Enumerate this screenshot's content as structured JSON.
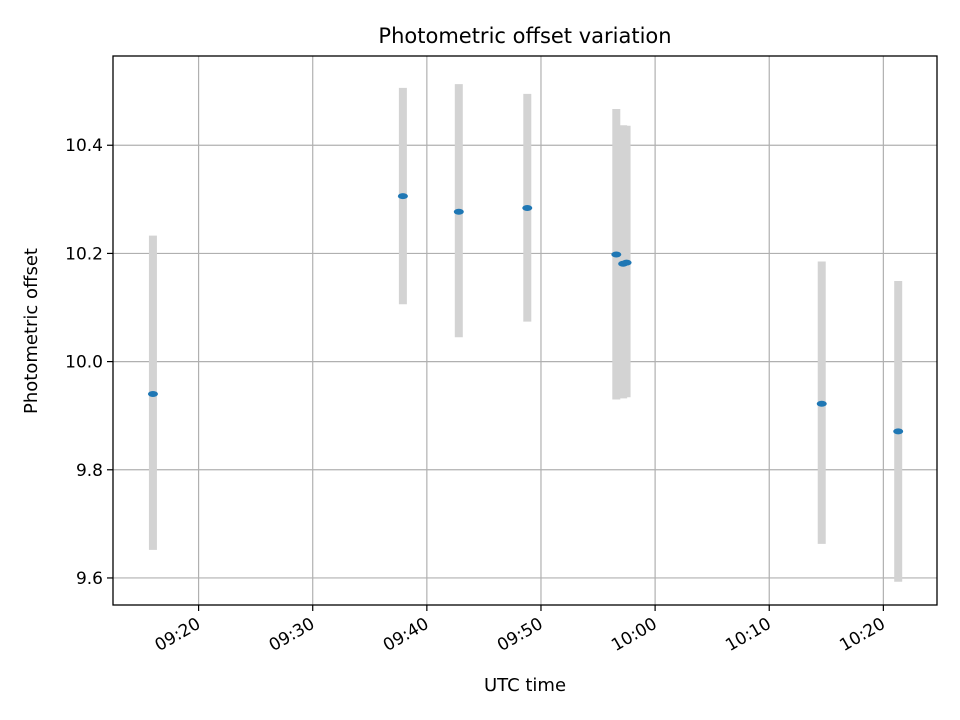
{
  "chart_data": {
    "type": "scatter",
    "title": "Photometric offset variation",
    "xlabel": "UTC time",
    "ylabel": "Photometric offset",
    "x_unit": "minutes after 09:00 UTC",
    "xlim": [
      12.5,
      84.7
    ],
    "ylim": [
      9.55,
      10.565
    ],
    "grid": true,
    "x_ticks": [
      {
        "value": 20,
        "label": "09:20"
      },
      {
        "value": 30,
        "label": "09:30"
      },
      {
        "value": 40,
        "label": "09:40"
      },
      {
        "value": 50,
        "label": "09:50"
      },
      {
        "value": 60,
        "label": "10:00"
      },
      {
        "value": 70,
        "label": "10:10"
      },
      {
        "value": 80,
        "label": "10:20"
      }
    ],
    "y_ticks": [
      {
        "value": 9.6,
        "label": "9.6"
      },
      {
        "value": 9.8,
        "label": "9.8"
      },
      {
        "value": 10.0,
        "label": "10.0"
      },
      {
        "value": 10.2,
        "label": "10.2"
      },
      {
        "value": 10.4,
        "label": "10.4"
      }
    ],
    "series": [
      {
        "name": "Photometric offset",
        "color": "#1f77b4",
        "errorbar_color": "#d3d3d3",
        "points": [
          {
            "x": 16.0,
            "y": 9.94,
            "ylow": 9.652,
            "yhigh": 10.233
          },
          {
            "x": 37.9,
            "y": 10.306,
            "ylow": 10.106,
            "yhigh": 10.506
          },
          {
            "x": 42.8,
            "y": 10.277,
            "ylow": 10.045,
            "yhigh": 10.513
          },
          {
            "x": 48.8,
            "y": 10.284,
            "ylow": 10.074,
            "yhigh": 10.495
          },
          {
            "x": 56.6,
            "y": 10.198,
            "ylow": 9.93,
            "yhigh": 10.467
          },
          {
            "x": 57.2,
            "y": 10.181,
            "ylow": 9.932,
            "yhigh": 10.437
          },
          {
            "x": 57.5,
            "y": 10.183,
            "ylow": 9.934,
            "yhigh": 10.436
          },
          {
            "x": 74.6,
            "y": 9.922,
            "ylow": 9.663,
            "yhigh": 10.185
          },
          {
            "x": 81.3,
            "y": 9.871,
            "ylow": 9.593,
            "yhigh": 10.149
          }
        ]
      }
    ]
  }
}
